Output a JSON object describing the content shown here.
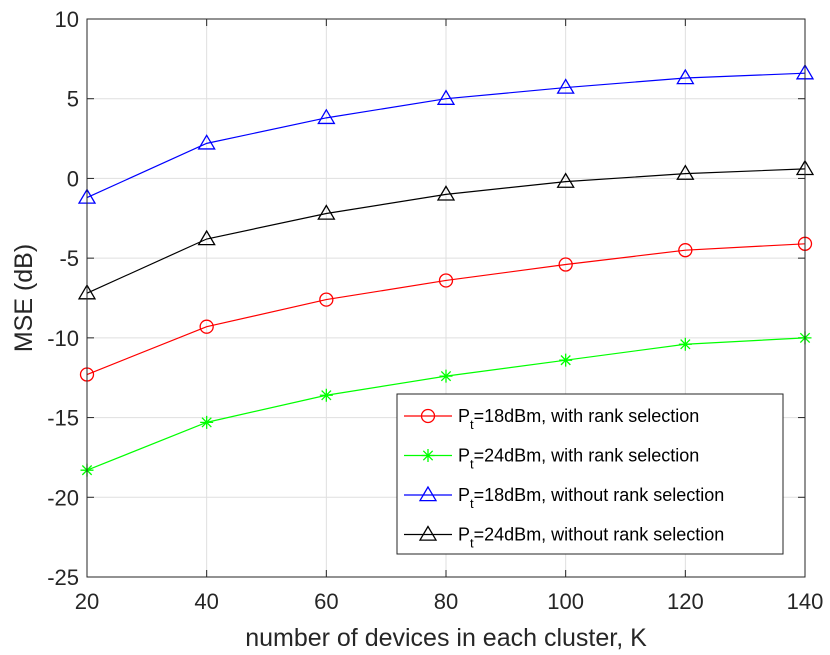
{
  "chart_data": {
    "type": "line",
    "xlabel": "number of devices in each cluster, K",
    "ylabel": "MSE (dB)",
    "xlim": [
      20,
      140
    ],
    "ylim": [
      -25,
      10
    ],
    "xticks": [
      20,
      40,
      60,
      80,
      100,
      120,
      140
    ],
    "yticks": [
      -25,
      -20,
      -15,
      -10,
      -5,
      0,
      5,
      10
    ],
    "grid": true,
    "legend_position": "bottom-right",
    "x": [
      20,
      40,
      60,
      80,
      100,
      120,
      140
    ],
    "series": [
      {
        "name": "P_t=18dBm, with rank selection",
        "legend": {
          "main": "P",
          "sub": "t",
          "rest": "=18dBm, with rank selection"
        },
        "color": "#ff0000",
        "marker": "circle",
        "values": [
          -12.3,
          -9.3,
          -7.6,
          -6.4,
          -5.4,
          -4.5,
          -4.1
        ]
      },
      {
        "name": "P_t=24dBm, with rank selection",
        "legend": {
          "main": "P",
          "sub": "t",
          "rest": "=24dBm, with rank selection"
        },
        "color": "#00ff00",
        "marker": "asterisk",
        "values": [
          -18.3,
          -15.3,
          -13.6,
          -12.4,
          -11.4,
          -10.4,
          -10.0
        ]
      },
      {
        "name": "P_t=18dBm, without rank selection",
        "legend": {
          "main": "P",
          "sub": "t",
          "rest": "=18dBm, without rank selection"
        },
        "color": "#0000ff",
        "marker": "triangle",
        "values": [
          -1.2,
          2.2,
          3.8,
          5.0,
          5.7,
          6.3,
          6.6
        ]
      },
      {
        "name": "P_t=24dBm, without rank selection",
        "legend": {
          "main": "P",
          "sub": "t",
          "rest": "=24dBm, without rank selection"
        },
        "color": "#000000",
        "marker": "triangle",
        "values": [
          -7.2,
          -3.8,
          -2.2,
          -1.0,
          -0.2,
          0.3,
          0.6
        ]
      }
    ]
  }
}
